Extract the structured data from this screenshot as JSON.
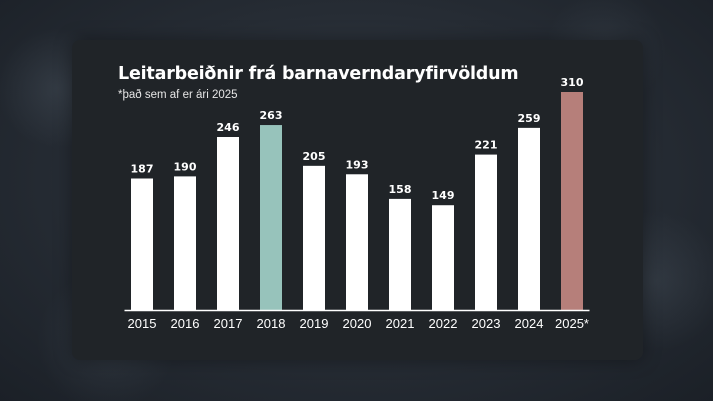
{
  "chart_data": {
    "type": "bar",
    "title": "Leitarbeiðnir frá barnaverndaryfirvöldum",
    "subtitle": "*það sem af er ári 2025",
    "categories": [
      "2015",
      "2016",
      "2017",
      "2018",
      "2019",
      "2020",
      "2021",
      "2022",
      "2023",
      "2024",
      "2025*"
    ],
    "values": [
      187,
      190,
      246,
      263,
      205,
      193,
      158,
      149,
      221,
      259,
      310
    ],
    "highlight": {
      "2018": "#97c3bb",
      "2025*": "#b67f7a"
    },
    "bar_color": "#ffffff",
    "ylim": [
      0,
      310
    ],
    "grid": false,
    "legend": "none",
    "background": "#202428",
    "text_color": "#ffffff"
  }
}
